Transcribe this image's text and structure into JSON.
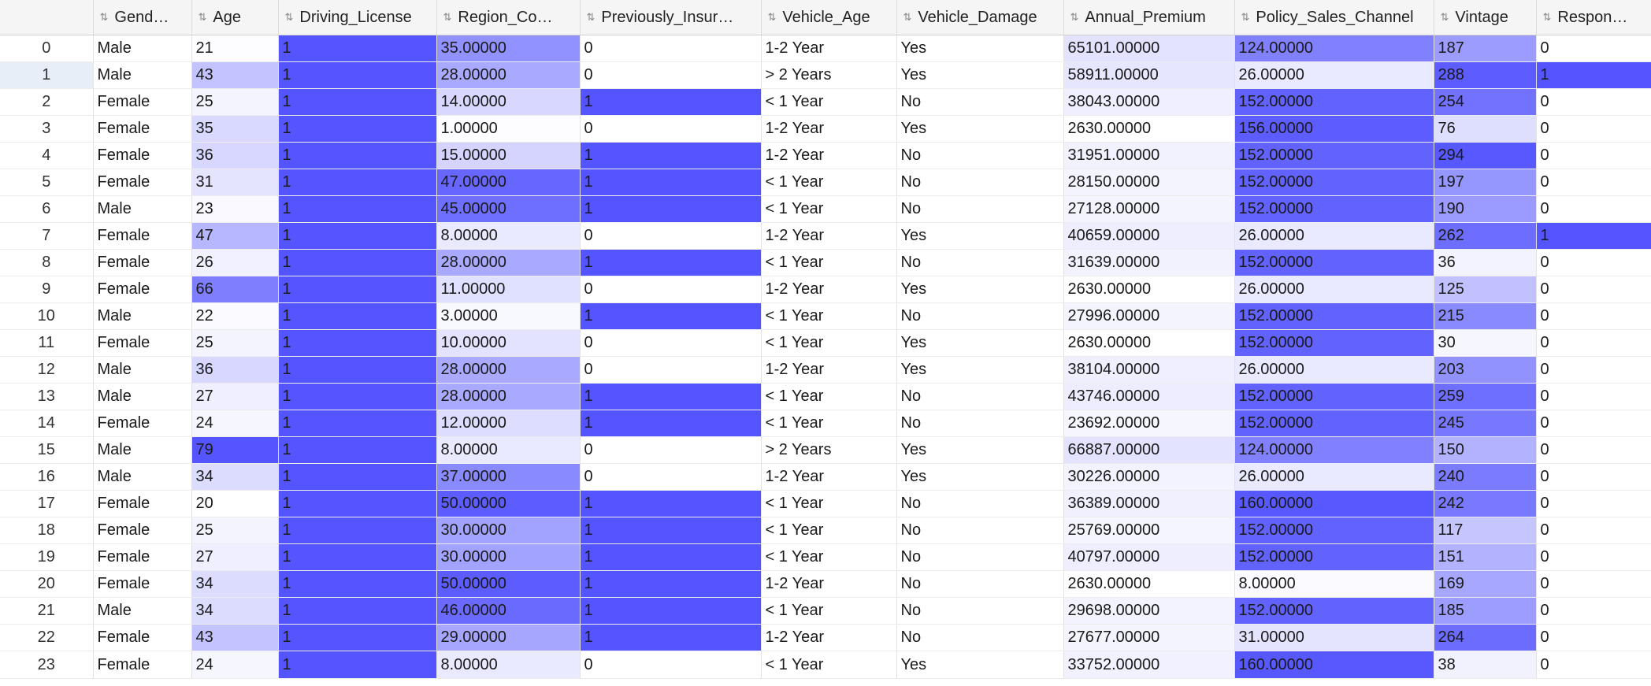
{
  "table": {
    "index_header": "",
    "columns": [
      {
        "key": "gender",
        "label": "Gend…",
        "icon": "sort-icon",
        "heat": false,
        "min": 0,
        "max": 1
      },
      {
        "key": "age",
        "label": "Age",
        "icon": "sort-icon",
        "heat": true,
        "min": 20,
        "max": 79
      },
      {
        "key": "dl",
        "label": "Driving_License",
        "icon": "sort-icon",
        "heat": true,
        "min": 0,
        "max": 1
      },
      {
        "key": "region",
        "label": "Region_Co…",
        "icon": "sort-icon",
        "heat": true,
        "min": 0,
        "max": 52
      },
      {
        "key": "prev",
        "label": "Previously_Insur…",
        "icon": "sort-icon",
        "heat": true,
        "min": 0,
        "max": 1
      },
      {
        "key": "vage",
        "label": "Vehicle_Age",
        "icon": "sort-icon",
        "heat": false,
        "min": 0,
        "max": 1
      },
      {
        "key": "vdmg",
        "label": "Vehicle_Damage",
        "icon": "sort-icon",
        "heat": false,
        "min": 0,
        "max": 1
      },
      {
        "key": "prem",
        "label": "Annual_Premium",
        "icon": "sort-icon",
        "heat": true,
        "min": 2630,
        "max": 540165
      },
      {
        "key": "psc",
        "label": "Policy_Sales_Channel",
        "icon": "sort-icon",
        "heat": true,
        "min": 1,
        "max": 163
      },
      {
        "key": "vint",
        "label": "Vintage",
        "icon": "sort-icon",
        "heat": true,
        "min": 10,
        "max": 299
      },
      {
        "key": "resp",
        "label": "Respon…",
        "icon": "sort-icon",
        "heat": true,
        "min": 0,
        "max": 1
      }
    ],
    "heat_color": "#5555ff",
    "selected_row": 1,
    "rows": [
      {
        "index": "0",
        "cells": [
          "Male",
          "21",
          "1",
          "35.00000",
          "0",
          "1-2 Year",
          "Yes",
          "65101.00000",
          "124.00000",
          "187",
          "0"
        ]
      },
      {
        "index": "1",
        "cells": [
          "Male",
          "43",
          "1",
          "28.00000",
          "0",
          "> 2 Years",
          "Yes",
          "58911.00000",
          "26.00000",
          "288",
          "1"
        ]
      },
      {
        "index": "2",
        "cells": [
          "Female",
          "25",
          "1",
          "14.00000",
          "1",
          "< 1 Year",
          "No",
          "38043.00000",
          "152.00000",
          "254",
          "0"
        ]
      },
      {
        "index": "3",
        "cells": [
          "Female",
          "35",
          "1",
          "1.00000",
          "0",
          "1-2 Year",
          "Yes",
          "2630.00000",
          "156.00000",
          "76",
          "0"
        ]
      },
      {
        "index": "4",
        "cells": [
          "Female",
          "36",
          "1",
          "15.00000",
          "1",
          "1-2 Year",
          "No",
          "31951.00000",
          "152.00000",
          "294",
          "0"
        ]
      },
      {
        "index": "5",
        "cells": [
          "Female",
          "31",
          "1",
          "47.00000",
          "1",
          "< 1 Year",
          "No",
          "28150.00000",
          "152.00000",
          "197",
          "0"
        ]
      },
      {
        "index": "6",
        "cells": [
          "Male",
          "23",
          "1",
          "45.00000",
          "1",
          "< 1 Year",
          "No",
          "27128.00000",
          "152.00000",
          "190",
          "0"
        ]
      },
      {
        "index": "7",
        "cells": [
          "Female",
          "47",
          "1",
          "8.00000",
          "0",
          "1-2 Year",
          "Yes",
          "40659.00000",
          "26.00000",
          "262",
          "1"
        ]
      },
      {
        "index": "8",
        "cells": [
          "Female",
          "26",
          "1",
          "28.00000",
          "1",
          "< 1 Year",
          "No",
          "31639.00000",
          "152.00000",
          "36",
          "0"
        ]
      },
      {
        "index": "9",
        "cells": [
          "Female",
          "66",
          "1",
          "11.00000",
          "0",
          "1-2 Year",
          "Yes",
          "2630.00000",
          "26.00000",
          "125",
          "0"
        ]
      },
      {
        "index": "10",
        "cells": [
          "Male",
          "22",
          "1",
          "3.00000",
          "1",
          "< 1 Year",
          "No",
          "27996.00000",
          "152.00000",
          "215",
          "0"
        ]
      },
      {
        "index": "11",
        "cells": [
          "Female",
          "25",
          "1",
          "10.00000",
          "0",
          "< 1 Year",
          "Yes",
          "2630.00000",
          "152.00000",
          "30",
          "0"
        ]
      },
      {
        "index": "12",
        "cells": [
          "Male",
          "36",
          "1",
          "28.00000",
          "0",
          "1-2 Year",
          "Yes",
          "38104.00000",
          "26.00000",
          "203",
          "0"
        ]
      },
      {
        "index": "13",
        "cells": [
          "Male",
          "27",
          "1",
          "28.00000",
          "1",
          "< 1 Year",
          "No",
          "43746.00000",
          "152.00000",
          "259",
          "0"
        ]
      },
      {
        "index": "14",
        "cells": [
          "Female",
          "24",
          "1",
          "12.00000",
          "1",
          "< 1 Year",
          "No",
          "23692.00000",
          "152.00000",
          "245",
          "0"
        ]
      },
      {
        "index": "15",
        "cells": [
          "Male",
          "79",
          "1",
          "8.00000",
          "0",
          "> 2 Years",
          "Yes",
          "66887.00000",
          "124.00000",
          "150",
          "0"
        ]
      },
      {
        "index": "16",
        "cells": [
          "Male",
          "34",
          "1",
          "37.00000",
          "0",
          "1-2 Year",
          "Yes",
          "30226.00000",
          "26.00000",
          "240",
          "0"
        ]
      },
      {
        "index": "17",
        "cells": [
          "Female",
          "20",
          "1",
          "50.00000",
          "1",
          "< 1 Year",
          "No",
          "36389.00000",
          "160.00000",
          "242",
          "0"
        ]
      },
      {
        "index": "18",
        "cells": [
          "Female",
          "25",
          "1",
          "30.00000",
          "1",
          "< 1 Year",
          "No",
          "25769.00000",
          "152.00000",
          "117",
          "0"
        ]
      },
      {
        "index": "19",
        "cells": [
          "Female",
          "27",
          "1",
          "30.00000",
          "1",
          "< 1 Year",
          "No",
          "40797.00000",
          "152.00000",
          "151",
          "0"
        ]
      },
      {
        "index": "20",
        "cells": [
          "Female",
          "34",
          "1",
          "50.00000",
          "1",
          "1-2 Year",
          "No",
          "2630.00000",
          "8.00000",
          "169",
          "0"
        ]
      },
      {
        "index": "21",
        "cells": [
          "Male",
          "34",
          "1",
          "46.00000",
          "1",
          "< 1 Year",
          "No",
          "29698.00000",
          "152.00000",
          "185",
          "0"
        ]
      },
      {
        "index": "22",
        "cells": [
          "Female",
          "43",
          "1",
          "29.00000",
          "1",
          "1-2 Year",
          "No",
          "27677.00000",
          "31.00000",
          "264",
          "0"
        ]
      },
      {
        "index": "23",
        "cells": [
          "Female",
          "24",
          "1",
          "8.00000",
          "0",
          "< 1 Year",
          "Yes",
          "33752.00000",
          "160.00000",
          "38",
          "0"
        ]
      }
    ]
  }
}
